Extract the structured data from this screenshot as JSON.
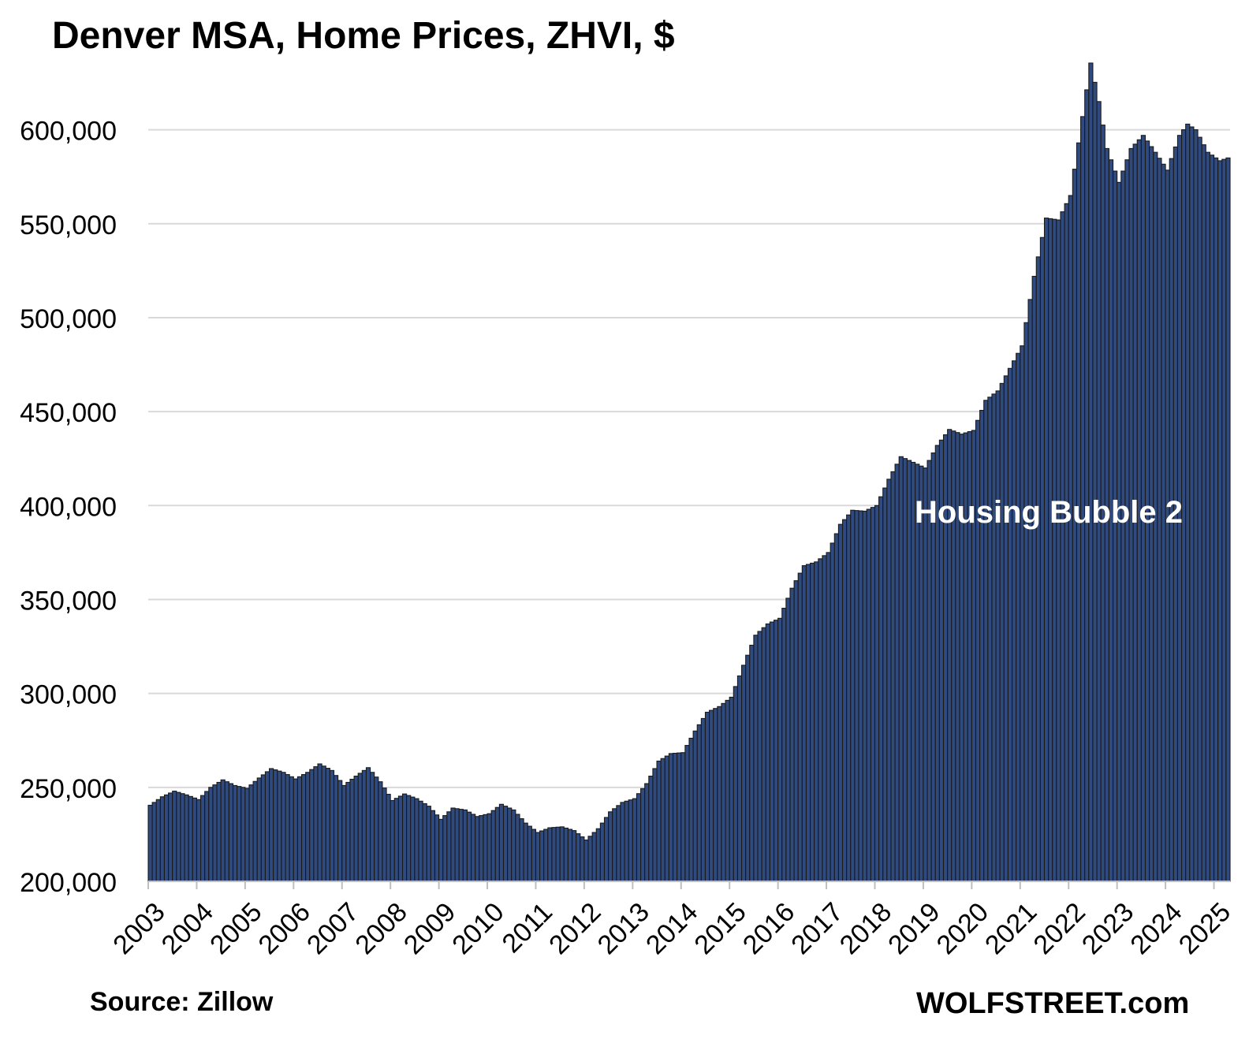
{
  "chart_data": {
    "type": "bar",
    "title": "Denver MSA, Home Prices, ZHVI, $",
    "xlabel": "",
    "ylabel": "",
    "ylim": [
      200000,
      625000
    ],
    "y_ticks": [
      "200,000",
      "250,000",
      "300,000",
      "350,000",
      "400,000",
      "450,000",
      "500,000",
      "550,000",
      "600,000"
    ],
    "y_tick_values": [
      200000,
      250000,
      300000,
      350000,
      400000,
      450000,
      500000,
      550000,
      600000
    ],
    "x_ticks": [
      "2003",
      "2004",
      "2005",
      "2006",
      "2007",
      "2008",
      "2009",
      "2010",
      "2011",
      "2012",
      "2013",
      "2014",
      "2015",
      "2016",
      "2017",
      "2018",
      "2019",
      "2020",
      "2021",
      "2022",
      "2023",
      "2024",
      "2025"
    ],
    "x_start": "2003-01",
    "frequency": "monthly",
    "series": [
      {
        "name": "",
        "anchors": [
          [
            "2003-01",
            240500
          ],
          [
            "2003-04",
            245000
          ],
          [
            "2003-07",
            248000
          ],
          [
            "2003-10",
            246000
          ],
          [
            "2004-01",
            243500
          ],
          [
            "2004-04",
            250000
          ],
          [
            "2004-07",
            254000
          ],
          [
            "2004-10",
            251000
          ],
          [
            "2005-01",
            249500
          ],
          [
            "2005-04",
            255000
          ],
          [
            "2005-07",
            260000
          ],
          [
            "2005-10",
            258000
          ],
          [
            "2006-01",
            254500
          ],
          [
            "2006-04",
            258000
          ],
          [
            "2006-07",
            262500
          ],
          [
            "2006-10",
            259000
          ],
          [
            "2007-01",
            251000
          ],
          [
            "2007-04",
            256000
          ],
          [
            "2007-07",
            260500
          ],
          [
            "2007-10",
            253000
          ],
          [
            "2008-01",
            243000
          ],
          [
            "2008-04",
            246500
          ],
          [
            "2008-07",
            244000
          ],
          [
            "2008-10",
            240000
          ],
          [
            "2009-01",
            233000
          ],
          [
            "2009-04",
            239000
          ],
          [
            "2009-07",
            238000
          ],
          [
            "2009-10",
            234500
          ],
          [
            "2010-01",
            236000
          ],
          [
            "2010-04",
            241000
          ],
          [
            "2010-07",
            238000
          ],
          [
            "2010-10",
            231000
          ],
          [
            "2011-01",
            226000
          ],
          [
            "2011-04",
            228500
          ],
          [
            "2011-07",
            229000
          ],
          [
            "2011-10",
            227000
          ],
          [
            "2012-01",
            222000
          ],
          [
            "2012-04",
            228000
          ],
          [
            "2012-07",
            237000
          ],
          [
            "2012-10",
            242000
          ],
          [
            "2013-01",
            244000
          ],
          [
            "2013-04",
            252000
          ],
          [
            "2013-07",
            264000
          ],
          [
            "2013-10",
            268000
          ],
          [
            "2014-01",
            268500
          ],
          [
            "2014-04",
            280000
          ],
          [
            "2014-07",
            290000
          ],
          [
            "2014-10",
            293000
          ],
          [
            "2015-01",
            298000
          ],
          [
            "2015-04",
            315000
          ],
          [
            "2015-07",
            331000
          ],
          [
            "2015-10",
            337000
          ],
          [
            "2016-01",
            340000
          ],
          [
            "2016-04",
            356000
          ],
          [
            "2016-07",
            368000
          ],
          [
            "2016-10",
            370000
          ],
          [
            "2017-01",
            375000
          ],
          [
            "2017-04",
            390000
          ],
          [
            "2017-07",
            397500
          ],
          [
            "2017-10",
            397000
          ],
          [
            "2018-01",
            400000
          ],
          [
            "2018-04",
            414000
          ],
          [
            "2018-07",
            426000
          ],
          [
            "2018-10",
            423000
          ],
          [
            "2019-01",
            420000
          ],
          [
            "2019-04",
            432000
          ],
          [
            "2019-07",
            440500
          ],
          [
            "2019-10",
            438000
          ],
          [
            "2020-01",
            440000
          ],
          [
            "2020-04",
            456000
          ],
          [
            "2020-07",
            461000
          ],
          [
            "2020-10",
            473000
          ],
          [
            "2021-01",
            485000
          ],
          [
            "2021-04",
            522000
          ],
          [
            "2021-07",
            553000
          ],
          [
            "2021-10",
            552000
          ],
          [
            "2022-01",
            565000
          ],
          [
            "2022-04",
            607000
          ],
          [
            "2022-06",
            635500
          ],
          [
            "2022-08",
            615000
          ],
          [
            "2022-10",
            590000
          ],
          [
            "2023-01",
            572000
          ],
          [
            "2023-04",
            590000
          ],
          [
            "2023-07",
            597000
          ],
          [
            "2023-10",
            588000
          ],
          [
            "2024-01",
            578500
          ],
          [
            "2024-04",
            597000
          ],
          [
            "2024-06",
            603000
          ],
          [
            "2024-08",
            600000
          ],
          [
            "2024-11",
            588000
          ],
          [
            "2025-02",
            583500
          ],
          [
            "2025-04",
            585000
          ]
        ]
      }
    ],
    "annotation": "Housing Bubble 2",
    "grid": "horizontal",
    "legend": "none",
    "bar_color": "#2f4a7f",
    "bar_edge_color": "#1a1a1a",
    "grid_color": "#d9d9d9",
    "axis_color": "#bfbfbf"
  },
  "footer": {
    "source": "Source: Zillow",
    "brand": "WOLFSTREET.com"
  }
}
